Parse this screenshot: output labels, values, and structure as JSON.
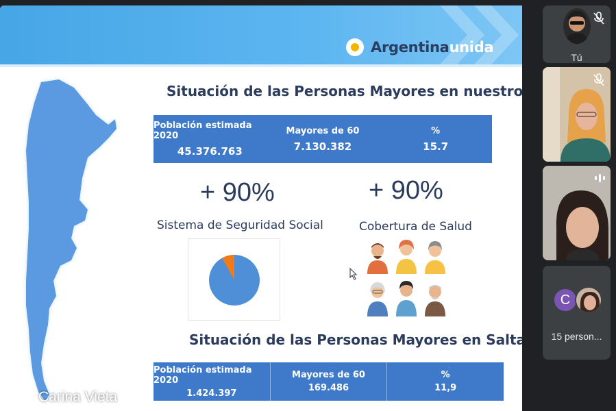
{
  "slide": {
    "logo": {
      "word1": "Argentina",
      "word2": "unida"
    },
    "national": {
      "title": "Situación de las Personas Mayores en nuestro país",
      "columns": [
        {
          "header": "Población estimada 2020",
          "value": "45.376.763"
        },
        {
          "header": "Mayores de 60",
          "value": "7.130.382"
        },
        {
          "header": "%",
          "value": "15.7"
        }
      ]
    },
    "stats": [
      {
        "big": "+ 90%",
        "label": "Sistema de Seguridad Social"
      },
      {
        "big": "+ 90%",
        "label": "Cobertura de Salud"
      }
    ],
    "salta": {
      "title": "Situación de las Personas Mayores en Salta",
      "columns": [
        {
          "header": "Población estimada 2020",
          "value": "1.424.397"
        },
        {
          "header": "Mayores de 60",
          "value": "169.486"
        },
        {
          "header": "%",
          "value": "11,9"
        }
      ]
    },
    "pie": {
      "covered_fraction": 0.92,
      "colors": {
        "main": "#4f8fd8",
        "rest": "#ef7c1a"
      }
    }
  },
  "presenter": {
    "name": "Carina Vieta",
    "mic": "mic-off-icon"
  },
  "participants": {
    "self_label": "Tú",
    "others_count_label": "15 person...",
    "others_initial": "C"
  },
  "colors": {
    "accent": "#46a6e6",
    "table": "#3f79c9",
    "title": "#2b3b5c",
    "background": "#202124"
  }
}
